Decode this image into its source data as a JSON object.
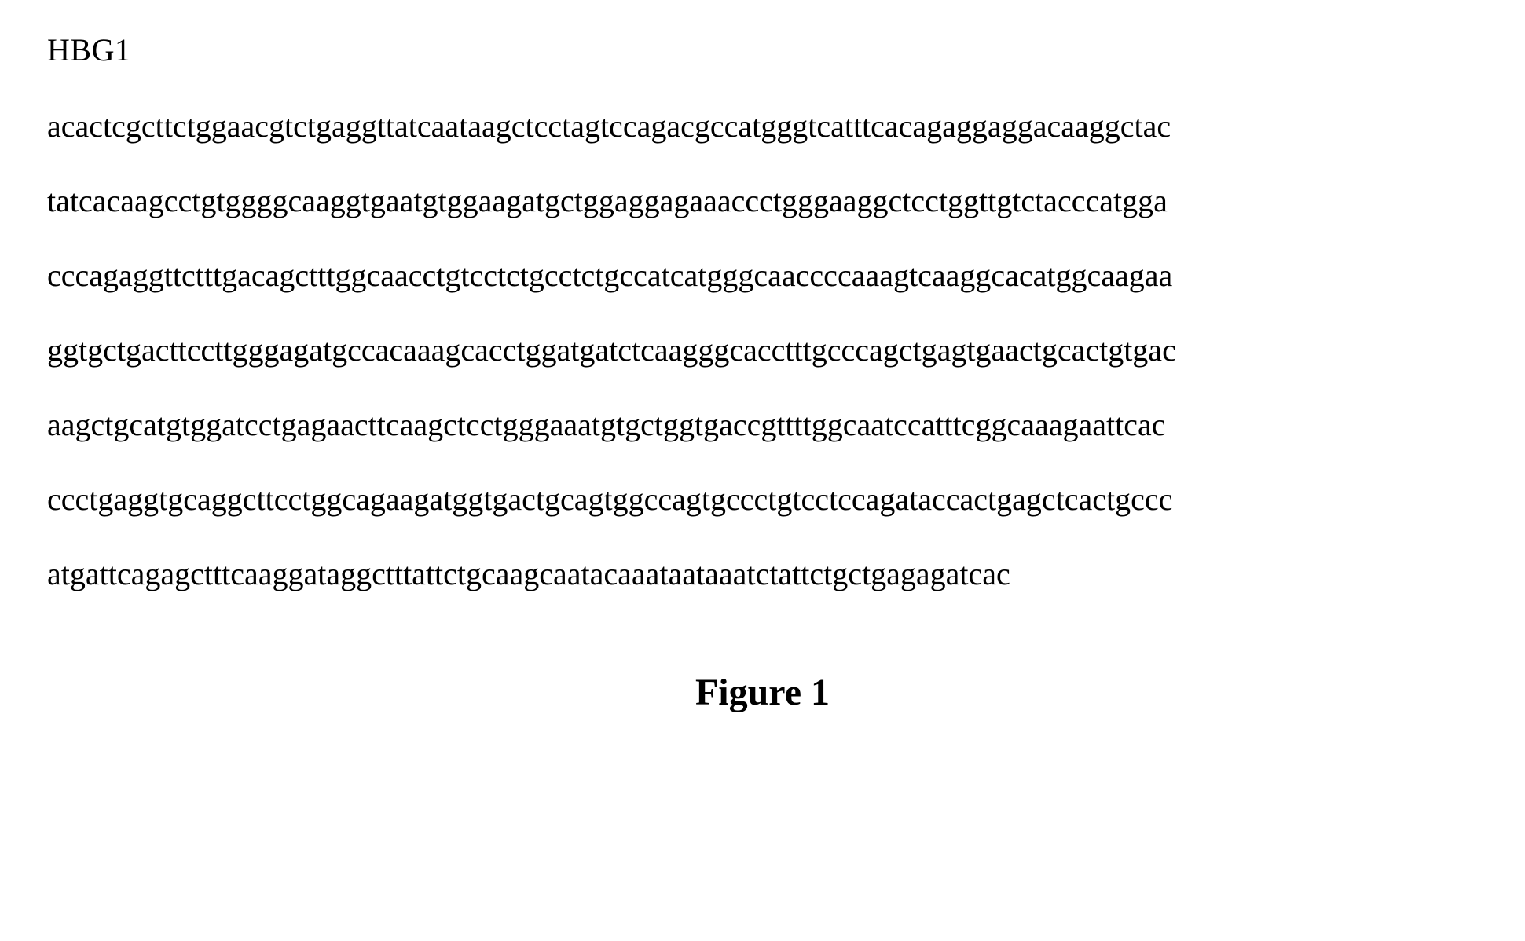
{
  "gene_name": "HBG1",
  "sequence_lines": [
    "acactcgcttctggaacgtctgaggttatcaataagctcctagtccagacgccatgggtcatttcacagaggaggacaaggctac",
    "tatcacaagcctgtggggcaaggtgaatgtggaagatgctggaggagaaaccctgggaaggctcctggttgtctacccatgga",
    "cccagaggttctttgacagctttggcaacctgtcctctgcctctgccatcatgggcaaccccaaagtcaaggcacatggcaagaa",
    "ggtgctgacttccttgggagatgccacaaagcacctggatgatctcaagggcacctttgcccagctgagtgaactgcactgtgac",
    "aagctgcatgtggatcctgagaacttcaagctcctgggaaatgtgctggtgaccgttttggcaatccatttcggcaaagaattcac",
    "ccctgaggtgcaggcttcctggcagaagatggtgactgcagtggccagtgccctgtcctccagataccactgagctcactgccc",
    "atgattcagagctttcaaggataggctttattctgcaagcaatacaaataataaatctattctgctgagagatcac"
  ],
  "figure_label": "Figure 1",
  "styling": {
    "background_color": "#ffffff",
    "text_color": "#000000",
    "gene_name_fontsize": 40,
    "sequence_fontsize": 40,
    "figure_label_fontsize": 48,
    "figure_label_fontweight": "bold",
    "font_family": "Times New Roman",
    "line_spacing": 48
  }
}
